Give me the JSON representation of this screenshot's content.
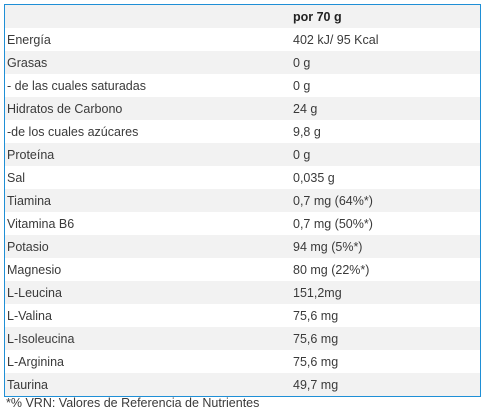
{
  "table": {
    "header": {
      "name": "",
      "value": "por 70 g"
    },
    "rows": [
      {
        "name": "Energía",
        "value": "402 kJ/ 95 Kcal"
      },
      {
        "name": "Grasas",
        "value": "0 g"
      },
      {
        "name": "- de las cuales saturadas",
        "value": "0 g"
      },
      {
        "name": "Hidratos de Carbono",
        "value": "24 g"
      },
      {
        "name": "-de los cuales azúcares",
        "value": "9,8 g"
      },
      {
        "name": "Proteína",
        "value": "0 g"
      },
      {
        "name": "Sal",
        "value": "0,035 g"
      },
      {
        "name": "Tiamina",
        "value": "0,7 mg (64%*)"
      },
      {
        "name": "Vitamina B6",
        "value": "0,7 mg (50%*)"
      },
      {
        "name": "Potasio",
        "value": "94 mg (5%*)"
      },
      {
        "name": "Magnesio",
        "value": "80 mg (22%*)"
      },
      {
        "name": "L-Leucina",
        "value": "151,2mg"
      },
      {
        "name": "L-Valina",
        "value": "75,6 mg"
      },
      {
        "name": "L-Isoleucina",
        "value": "75,6 mg"
      },
      {
        "name": "L-Arginina",
        "value": "75,6 mg"
      },
      {
        "name": "Taurina",
        "value": "49,7 mg"
      }
    ]
  },
  "footnote": "*% VRN: Valores de Referencia de Nutrientes"
}
